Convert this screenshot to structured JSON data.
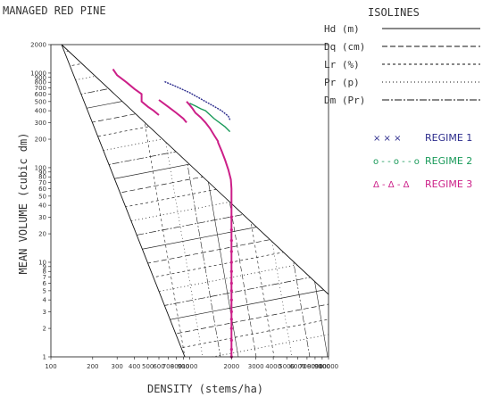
{
  "chart_data": {
    "type": "line",
    "title": "MANAGED RED PINE",
    "xlabel": "DENSITY (stems/ha)",
    "ylabel": "MEAN VOLUME (cubic dm)",
    "xscale": "log",
    "yscale": "log",
    "xlim": [
      100,
      10000
    ],
    "ylim": [
      1,
      2000
    ],
    "x_ticks": [
      "100",
      "200",
      "300",
      "400",
      "500",
      "600",
      "700",
      "800",
      "900",
      "1000",
      "2000",
      "3000",
      "4000",
      "5000",
      "6000",
      "7000",
      "8000",
      "9000",
      "10000"
    ],
    "y_ticks": [
      "1",
      "2",
      "3",
      "4",
      "5",
      "6",
      "7",
      "8",
      "9",
      "10",
      "20",
      "30",
      "40",
      "50",
      "60",
      "70",
      "80",
      "90",
      "100",
      "200",
      "300",
      "400",
      "500",
      "600",
      "700",
      "800",
      "900",
      "1000",
      "2000"
    ],
    "isolines": {
      "heading": "ISOLINES",
      "items": [
        {
          "label": "Hd (m)",
          "style": "solid"
        },
        {
          "label": "Dq (cm)",
          "style": "dashed"
        },
        {
          "label": "Lr (%)",
          "style": "short-dashed"
        },
        {
          "label": "Pr (p)",
          "style": "dotted"
        },
        {
          "label": "Dm (Pr)",
          "style": "dash-dot"
        }
      ]
    },
    "series": [
      {
        "name": "REGIME 1",
        "marker_text": "× × ×",
        "color": "#2b2b8c",
        "x": [
          1950,
          1900,
          1700,
          1300,
          1000,
          800,
          650
        ],
        "y": [
          320,
          350,
          400,
          500,
          620,
          720,
          820
        ]
      },
      {
        "name": "REGIME 2",
        "marker_text": "o - - o - - o",
        "color": "#1a9a5a",
        "x": [
          1950,
          1800,
          1500,
          1300,
          1200,
          1100,
          1000
        ],
        "y": [
          240,
          270,
          330,
          400,
          420,
          450,
          480
        ]
      },
      {
        "name": "REGIME 3",
        "marker_text": "Δ - Δ - Δ",
        "color": "#cc1f88",
        "x": [
          2000,
          2000,
          2000,
          2000,
          2000,
          2000,
          2000,
          2000,
          2000,
          2000,
          2000,
          2000,
          2000,
          2000,
          2000,
          2000,
          2000,
          2000,
          1980,
          1900,
          1800,
          1700,
          1600,
          1600,
          1500,
          1400,
          1300,
          1200,
          1100,
          1050,
          1000,
          950,
          950,
          900,
          800,
          700,
          600,
          600,
          550,
          500,
          450,
          450,
          400,
          350,
          300,
          280
        ],
        "y": [
          1,
          1.2,
          1.5,
          2,
          2.5,
          3,
          4,
          5,
          6,
          8,
          10,
          13,
          17,
          22,
          30,
          40,
          50,
          60,
          75,
          95,
          120,
          150,
          185,
          190,
          220,
          260,
          300,
          340,
          380,
          420,
          460,
          500,
          300,
          330,
          380,
          440,
          520,
          360,
          400,
          440,
          500,
          600,
          680,
          800,
          950,
          1100
        ]
      }
    ]
  }
}
